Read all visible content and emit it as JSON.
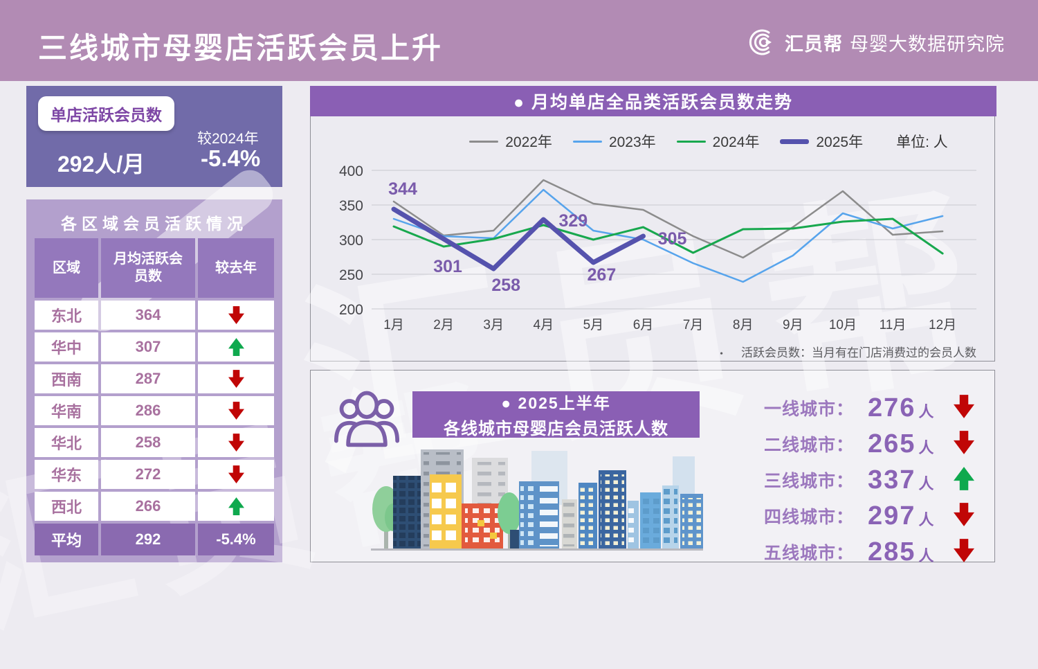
{
  "header": {
    "title": "三线城市母婴店活跃会员上升",
    "logo_name": "汇员帮",
    "logo_subtitle": "母婴大数据研究院"
  },
  "watermark": "汇员帮",
  "stat_card": {
    "badge": "单店活跃会员数",
    "value": "292人/月",
    "compare_label": "较2024年",
    "compare_value": "-5.4%"
  },
  "region_table": {
    "title": "各区域会员活跃情况",
    "columns": [
      "区域",
      "月均活跃会员数",
      "较去年"
    ],
    "rows": [
      {
        "region": "东北",
        "value": "364",
        "trend": "down"
      },
      {
        "region": "华中",
        "value": "307",
        "trend": "up"
      },
      {
        "region": "西南",
        "value": "287",
        "trend": "down"
      },
      {
        "region": "华南",
        "value": "286",
        "trend": "down"
      },
      {
        "region": "华北",
        "value": "258",
        "trend": "down"
      },
      {
        "region": "华东",
        "value": "272",
        "trend": "down"
      },
      {
        "region": "西北",
        "value": "266",
        "trend": "up"
      }
    ],
    "footer": {
      "region": "平均",
      "value": "292",
      "trend": "-5.4%"
    }
  },
  "chart_panel": {
    "title": "●  月均单店全品类活跃会员数走势",
    "unit_label": "单位: 人",
    "footnote_bullet": "•",
    "footnote": "活跃会员数：当月有在门店消费过的会员人数"
  },
  "chart_data": {
    "type": "line",
    "title": "月均单店全品类活跃会员数走势",
    "ylabel": "人",
    "categories": [
      "1月",
      "2月",
      "3月",
      "4月",
      "5月",
      "6月",
      "7月",
      "8月",
      "9月",
      "10月",
      "11月",
      "12月"
    ],
    "ylim": [
      200,
      400
    ],
    "yticks": [
      400,
      350,
      300,
      250,
      200
    ],
    "grid": true,
    "legend_position": "top",
    "series": [
      {
        "name": "2022年",
        "color": "#8c8c8c",
        "width": 2.5,
        "values": [
          355,
          306,
          313,
          386,
          352,
          343,
          305,
          274,
          318,
          370,
          307,
          312
        ]
      },
      {
        "name": "2023年",
        "color": "#57a4ec",
        "width": 2.5,
        "values": [
          330,
          305,
          302,
          372,
          313,
          300,
          266,
          239,
          277,
          338,
          316,
          334
        ]
      },
      {
        "name": "2024年",
        "color": "#18a84e",
        "width": 3,
        "values": [
          319,
          290,
          301,
          321,
          300,
          318,
          281,
          315,
          316,
          326,
          330,
          280
        ]
      },
      {
        "name": "2025年",
        "color": "#5552ad",
        "width": 7,
        "labels": true,
        "values": [
          344,
          301,
          258,
          329,
          267,
          305
        ]
      }
    ]
  },
  "bottom_panel": {
    "title_line1": "●  2025上半年",
    "title_line2": "各线城市母婴店会员活跃人数",
    "stats": [
      {
        "label": "一线城市：",
        "value": "276",
        "unit": "人",
        "trend": "down"
      },
      {
        "label": "二线城市：",
        "value": "265",
        "unit": "人",
        "trend": "down"
      },
      {
        "label": "三线城市：",
        "value": "337",
        "unit": "人",
        "trend": "up"
      },
      {
        "label": "四线城市：",
        "value": "297",
        "unit": "人",
        "trend": "down"
      },
      {
        "label": "五线城市：",
        "value": "285",
        "unit": "人",
        "trend": "down"
      }
    ]
  },
  "colors": {
    "banner": "#b28bb4",
    "stat_card": "#716ba9",
    "table_panel": "#b3a0cd",
    "table_header": "#9478bc",
    "table_footer": "#8a6ab0",
    "section_title_bar": "#8a5fb4",
    "table_text": "#a8719f",
    "data_label": "#7a5bab",
    "trend_up": "#0fa94e",
    "trend_down": "#c00606"
  }
}
